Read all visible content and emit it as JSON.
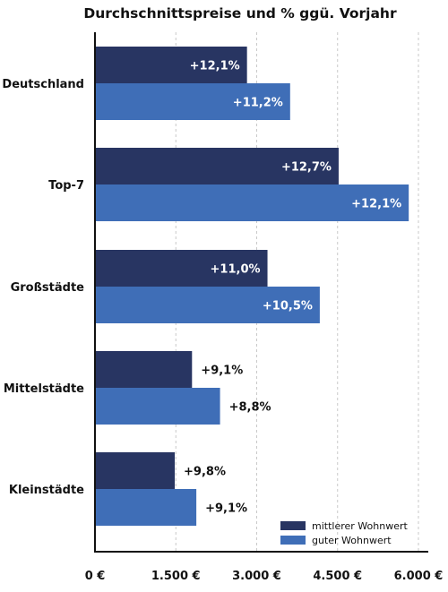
{
  "chart_data": {
    "type": "bar",
    "orientation": "horizontal",
    "title": "Durchschnittspreise und % ggü. Vorjahr",
    "categories": [
      "Deutschland",
      "Top-7",
      "Großstädte",
      "Mittelstädte",
      "Kleinstädte"
    ],
    "series": [
      {
        "name": "mittlerer Wohnwert",
        "color": "#283562",
        "values": [
          2820,
          4520,
          3200,
          1800,
          1480
        ],
        "labels": [
          "+12,1%",
          "+12,7%",
          "+11,0%",
          "+9,1%",
          "+9,8%"
        ]
      },
      {
        "name": "guter Wohnwert",
        "color": "#3f6eb7",
        "values": [
          3620,
          5820,
          4170,
          2320,
          1880
        ],
        "labels": [
          "+11,2%",
          "+12,1%",
          "+10,5%",
          "+8,8%",
          "+9,1%"
        ]
      }
    ],
    "xlim": [
      0,
      6000
    ],
    "xticks": [
      0,
      1500,
      3000,
      4500,
      6000
    ],
    "xtick_labels": [
      "0 €",
      "1.500 €",
      "3.000 €",
      "4.500 €",
      "6.000 €"
    ],
    "grid": "vertical dashed",
    "legend_position": "bottom-right"
  }
}
